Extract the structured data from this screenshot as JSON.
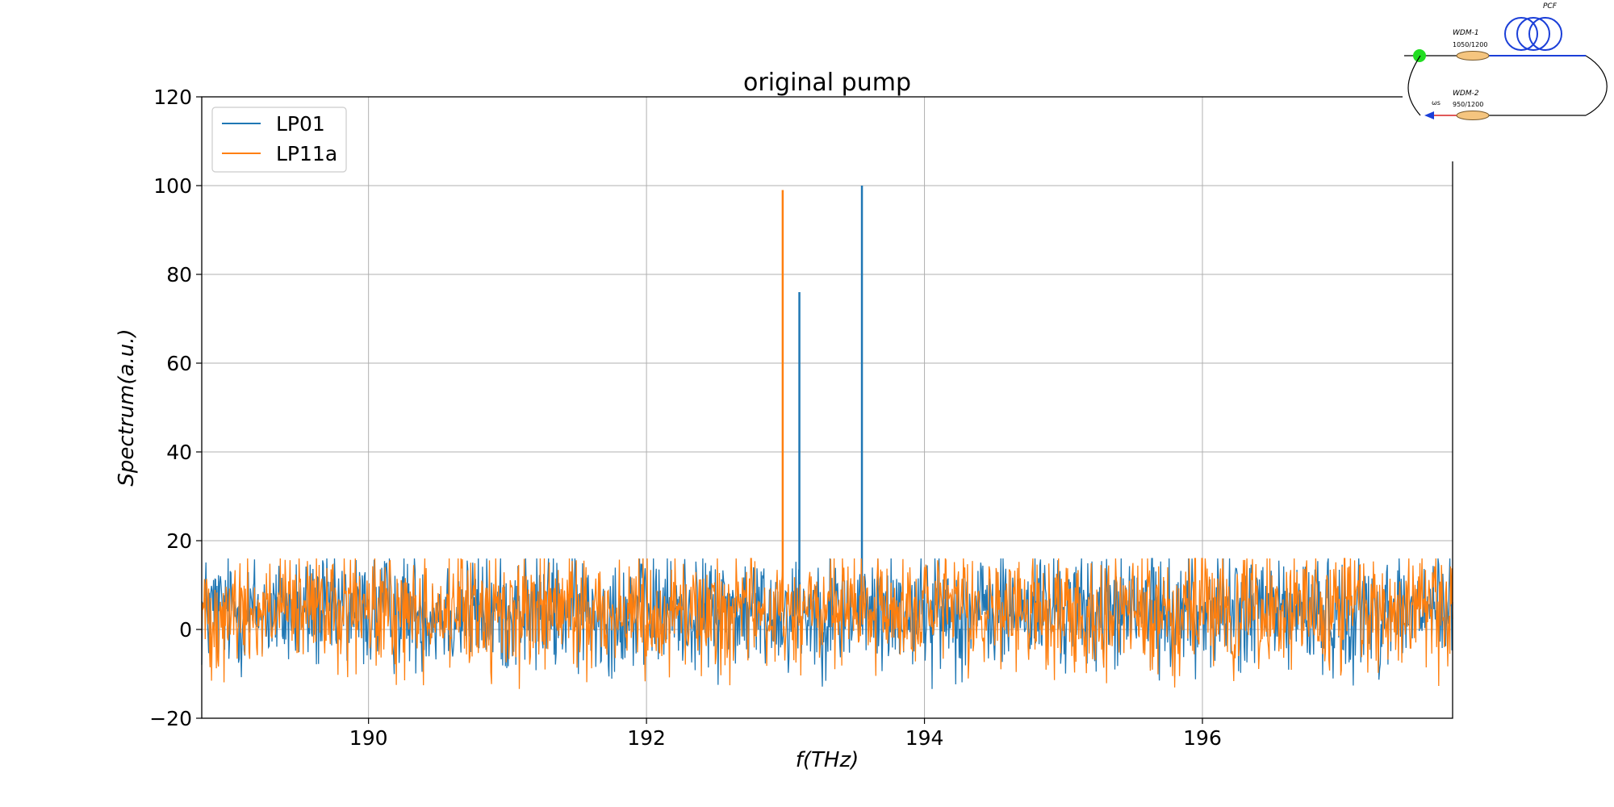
{
  "chart_data": {
    "type": "line",
    "title": "original pump",
    "xlabel": "f(THz)",
    "ylabel": "Spectrum(a.u.)",
    "xlim": [
      188.8,
      197.8
    ],
    "ylim": [
      -20,
      120
    ],
    "xticks": [
      190,
      192,
      194,
      196
    ],
    "xtick_labels": [
      "190",
      "192",
      "194",
      "196"
    ],
    "yticks": [
      -20,
      0,
      20,
      40,
      60,
      80,
      100,
      120
    ],
    "ytick_labels": [
      "−20",
      "0",
      "20",
      "40",
      "60",
      "80",
      "100",
      "120"
    ],
    "grid": true,
    "legend_position": "upper-left",
    "noise_floor": {
      "mean": 4,
      "range": [
        -20,
        16
      ]
    },
    "series": [
      {
        "name": "LP01",
        "color": "#1f77b4",
        "peaks": [
          {
            "x": 193.1,
            "y": 76
          },
          {
            "x": 193.55,
            "y": 100
          }
        ]
      },
      {
        "name": "LP11a",
        "color": "#ff7f0e",
        "peaks": [
          {
            "x": 192.98,
            "y": 99
          }
        ]
      }
    ]
  },
  "inset": {
    "pcf_label": "PCF",
    "wdm1_label": "WDM-1",
    "wdm1_sub": "1050/1200",
    "wdm2_label": "WDM-2",
    "wdm2_sub": "950/1200",
    "omega_label": "ωs",
    "accent_green": "#22dd22",
    "accent_blue": "#1b3fd8"
  }
}
